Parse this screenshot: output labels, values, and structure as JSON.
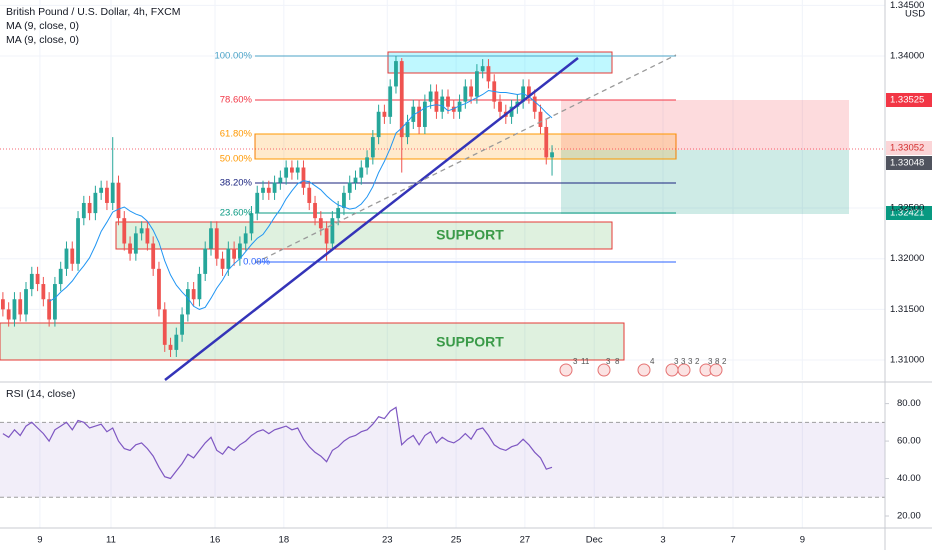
{
  "chart_data": [
    {
      "type": "candlestick",
      "title": "British Pound / U.S. Dollar, 4h, FXCM",
      "indicators": [
        "MA (9, close, 0)",
        "MA (9, close, 0)"
      ],
      "currency": "USD",
      "up_color": "#26a69a",
      "down_color": "#ef5350",
      "candles": [
        [
          1.316,
          1.3167,
          1.3143,
          1.315
        ],
        [
          1.315,
          1.3157,
          1.3133,
          1.314
        ],
        [
          1.314,
          1.3167,
          1.3133,
          1.316
        ],
        [
          1.316,
          1.3167,
          1.3138,
          1.3145
        ],
        [
          1.3145,
          1.3177,
          1.3138,
          1.317
        ],
        [
          1.317,
          1.3192,
          1.3163,
          1.3185
        ],
        [
          1.3185,
          1.3192,
          1.3168,
          1.3175
        ],
        [
          1.3175,
          1.3182,
          1.3153,
          1.316
        ],
        [
          1.316,
          1.3167,
          1.3133,
          1.314
        ],
        [
          1.314,
          1.3182,
          1.3133,
          1.3175
        ],
        [
          1.3175,
          1.3197,
          1.3168,
          1.319
        ],
        [
          1.319,
          1.3217,
          1.3183,
          1.321
        ],
        [
          1.321,
          1.3217,
          1.3188,
          1.3195
        ],
        [
          1.3195,
          1.3247,
          1.3188,
          1.324
        ],
        [
          1.324,
          1.3262,
          1.3233,
          1.3255
        ],
        [
          1.3255,
          1.3262,
          1.3238,
          1.3245
        ],
        [
          1.3245,
          1.3272,
          1.3238,
          1.3265
        ],
        [
          1.3265,
          1.3277,
          1.3258,
          1.327
        ],
        [
          1.327,
          1.3277,
          1.3248,
          1.3255
        ],
        [
          1.3255,
          1.332,
          1.3248,
          1.3275
        ],
        [
          1.3275,
          1.3282,
          1.3233,
          1.324
        ],
        [
          1.324,
          1.3247,
          1.3208,
          1.3215
        ],
        [
          1.3215,
          1.3222,
          1.3198,
          1.3205
        ],
        [
          1.3205,
          1.3232,
          1.3198,
          1.3225
        ],
        [
          1.3225,
          1.3237,
          1.3218,
          1.323
        ],
        [
          1.323,
          1.3237,
          1.3208,
          1.3215
        ],
        [
          1.3215,
          1.3222,
          1.3183,
          1.319
        ],
        [
          1.319,
          1.3197,
          1.3143,
          1.315
        ],
        [
          1.315,
          1.3157,
          1.3108,
          1.3115
        ],
        [
          1.3115,
          1.3122,
          1.3103,
          1.311
        ],
        [
          1.311,
          1.3132,
          1.3103,
          1.3125
        ],
        [
          1.3125,
          1.3152,
          1.3118,
          1.3145
        ],
        [
          1.3145,
          1.3177,
          1.3138,
          1.317
        ],
        [
          1.317,
          1.3177,
          1.3153,
          1.316
        ],
        [
          1.316,
          1.3192,
          1.3153,
          1.3185
        ],
        [
          1.3185,
          1.3217,
          1.3178,
          1.321
        ],
        [
          1.321,
          1.3237,
          1.3203,
          1.323
        ],
        [
          1.323,
          1.3237,
          1.3193,
          1.32
        ],
        [
          1.32,
          1.3207,
          1.3183,
          1.319
        ],
        [
          1.319,
          1.3217,
          1.3183,
          1.321
        ],
        [
          1.321,
          1.3217,
          1.3193,
          1.32
        ],
        [
          1.32,
          1.3222,
          1.3193,
          1.3215
        ],
        [
          1.3215,
          1.3232,
          1.3208,
          1.3225
        ],
        [
          1.3225,
          1.3252,
          1.3218,
          1.3245
        ],
        [
          1.3245,
          1.3272,
          1.3238,
          1.3265
        ],
        [
          1.3265,
          1.3277,
          1.3258,
          1.327
        ],
        [
          1.327,
          1.3277,
          1.3258,
          1.3265
        ],
        [
          1.3265,
          1.3282,
          1.3258,
          1.3275
        ],
        [
          1.3275,
          1.3287,
          1.3268,
          1.328
        ],
        [
          1.328,
          1.3297,
          1.3273,
          1.329
        ],
        [
          1.329,
          1.3297,
          1.3278,
          1.3285
        ],
        [
          1.3285,
          1.3297,
          1.3278,
          1.329
        ],
        [
          1.329,
          1.3297,
          1.3263,
          1.327
        ],
        [
          1.327,
          1.3277,
          1.3248,
          1.3255
        ],
        [
          1.3255,
          1.3262,
          1.3233,
          1.324
        ],
        [
          1.324,
          1.3247,
          1.3223,
          1.323
        ],
        [
          1.323,
          1.3237,
          1.3198,
          1.3215
        ],
        [
          1.3215,
          1.3247,
          1.3208,
          1.324
        ],
        [
          1.324,
          1.3257,
          1.3233,
          1.325
        ],
        [
          1.325,
          1.3272,
          1.3243,
          1.3265
        ],
        [
          1.3265,
          1.3282,
          1.3258,
          1.3275
        ],
        [
          1.3275,
          1.3287,
          1.3268,
          1.328
        ],
        [
          1.328,
          1.3297,
          1.3273,
          1.329
        ],
        [
          1.329,
          1.3307,
          1.3283,
          1.33
        ],
        [
          1.33,
          1.3327,
          1.3293,
          1.332
        ],
        [
          1.332,
          1.3352,
          1.3313,
          1.3345
        ],
        [
          1.3345,
          1.3352,
          1.3333,
          1.334
        ],
        [
          1.334,
          1.3377,
          1.3333,
          1.337
        ],
        [
          1.337,
          1.34,
          1.3363,
          1.3395
        ],
        [
          1.3395,
          1.3398,
          1.3285,
          1.332
        ],
        [
          1.332,
          1.3342,
          1.3313,
          1.3335
        ],
        [
          1.3335,
          1.3357,
          1.3328,
          1.335
        ],
        [
          1.335,
          1.3357,
          1.3323,
          1.333
        ],
        [
          1.333,
          1.3362,
          1.3323,
          1.3355
        ],
        [
          1.3355,
          1.3372,
          1.3348,
          1.3365
        ],
        [
          1.3365,
          1.3372,
          1.3338,
          1.3345
        ],
        [
          1.3345,
          1.3367,
          1.3338,
          1.336
        ],
        [
          1.336,
          1.3367,
          1.3343,
          1.335
        ],
        [
          1.335,
          1.3357,
          1.3338,
          1.3345
        ],
        [
          1.3345,
          1.3362,
          1.3338,
          1.3355
        ],
        [
          1.3355,
          1.3377,
          1.3348,
          1.337
        ],
        [
          1.337,
          1.3377,
          1.3353,
          1.336
        ],
        [
          1.336,
          1.3392,
          1.3353,
          1.3385
        ],
        [
          1.3385,
          1.3397,
          1.3378,
          1.339
        ],
        [
          1.339,
          1.3397,
          1.3368,
          1.3375
        ],
        [
          1.3375,
          1.3382,
          1.3348,
          1.3355
        ],
        [
          1.3355,
          1.3362,
          1.3338,
          1.3345
        ],
        [
          1.3345,
          1.3352,
          1.3333,
          1.334
        ],
        [
          1.334,
          1.3357,
          1.3333,
          1.335
        ],
        [
          1.335,
          1.3362,
          1.3343,
          1.3355
        ],
        [
          1.3355,
          1.3377,
          1.3348,
          1.337
        ],
        [
          1.337,
          1.3377,
          1.3353,
          1.336
        ],
        [
          1.336,
          1.3367,
          1.3338,
          1.3345
        ],
        [
          1.3345,
          1.3352,
          1.3323,
          1.333
        ],
        [
          1.333,
          1.3337,
          1.3293,
          1.33
        ],
        [
          1.33,
          1.3312,
          1.3282,
          1.3305
        ]
      ],
      "ma": {
        "color": "#2196f3",
        "values": [
          null,
          null,
          null,
          null,
          null,
          null,
          null,
          null,
          1.3158,
          1.3161,
          1.3167,
          1.3172,
          1.3178,
          1.3186,
          1.3193,
          1.3201,
          1.3213,
          1.3227,
          1.3236,
          1.3246,
          1.3249,
          1.3251,
          1.3247,
          1.3244,
          1.3242,
          1.3237,
          1.3228,
          1.3216,
          1.3198,
          1.3184,
          1.3174,
          1.3167,
          1.3161,
          1.3153,
          1.315,
          1.3152,
          1.3161,
          1.3171,
          1.3179,
          1.3189,
          1.3195,
          1.32,
          1.3207,
          1.3214,
          1.322,
          1.3224,
          1.3232,
          1.3241,
          1.3249,
          1.3259,
          1.3267,
          1.3274,
          1.3277,
          1.3276,
          1.3272,
          1.3268,
          1.3262,
          1.3257,
          1.3253,
          1.3251,
          1.3249,
          1.325,
          1.3254,
          1.3261,
          1.3271,
          1.3285,
          1.3296,
          1.3309,
          1.3324,
          1.3329,
          1.3335,
          1.3342,
          1.3345,
          1.3349,
          1.3351,
          1.3352,
          1.3351,
          1.3346,
          1.3348,
          1.3351,
          1.3353,
          1.3356,
          1.3359,
          1.3362,
          1.3366,
          1.3365,
          1.3364,
          1.3364,
          1.3363,
          1.3362,
          1.3363,
          1.336,
          1.3355,
          1.335,
          1.3344,
          1.3339
        ]
      },
      "ylim": [
        1.30803,
        1.34553
      ],
      "yticks": [
        {
          "value": 1.345,
          "label": "1.34500"
        },
        {
          "value": 1.34,
          "label": "1.34000"
        },
        {
          "value": 1.325,
          "label": "1.32500"
        },
        {
          "value": 1.32,
          "label": "1.32000"
        },
        {
          "value": 1.315,
          "label": "1.31500"
        },
        {
          "value": 1.31,
          "label": "1.31000"
        }
      ],
      "xlim": [
        -0.5,
        152.6
      ],
      "xticks": [
        {
          "value": 6.4,
          "label": "9"
        },
        {
          "value": 18.7,
          "label": "11"
        },
        {
          "value": 36.7,
          "label": "16"
        },
        {
          "value": 48.6,
          "label": "18"
        },
        {
          "value": 66.5,
          "label": "23"
        },
        {
          "value": 78.4,
          "label": "25"
        },
        {
          "value": 90.3,
          "label": "27"
        },
        {
          "value": 102.3,
          "label": "Dec"
        },
        {
          "value": 114.2,
          "label": "3"
        },
        {
          "value": 126.3,
          "label": "7"
        },
        {
          "value": 138.3,
          "label": "9"
        }
      ],
      "grid": true,
      "fib_labels": [
        "100.00%",
        "78.60%",
        "61.80%",
        "50.00%",
        "38.20%",
        "23.60%",
        "0.00%"
      ],
      "zone_labels": [
        "SUPPORT",
        "SUPPORT"
      ],
      "price_labels": [
        "1.33525",
        "1.33052",
        "1.33048",
        "1.32421"
      ],
      "events": [
        "3",
        "11",
        "3",
        "8",
        "4",
        "3",
        "3",
        "3",
        "2",
        "3",
        "8",
        "2"
      ]
    },
    {
      "type": "line",
      "title": "RSI (14, close)",
      "color": "#7e57c2",
      "values": [
        64,
        62,
        66,
        63,
        68,
        70,
        67,
        64,
        60,
        66,
        68,
        70,
        66,
        71,
        70,
        67,
        68,
        69,
        65,
        67,
        60,
        56,
        55,
        58,
        59,
        56,
        52,
        46,
        41,
        40,
        44,
        48,
        53,
        51,
        55,
        59,
        62,
        55,
        53,
        57,
        55,
        58,
        60,
        63,
        65,
        66,
        64,
        66,
        67,
        68,
        66,
        67,
        61,
        57,
        54,
        52,
        49,
        55,
        57,
        60,
        62,
        63,
        65,
        66,
        69,
        73,
        72,
        76,
        78,
        58,
        61,
        63,
        58,
        63,
        65,
        59,
        62,
        60,
        59,
        61,
        64,
        61,
        66,
        67,
        63,
        58,
        56,
        55,
        57,
        58,
        61,
        58,
        54,
        51,
        45,
        46
      ],
      "ylim": [
        13.6,
        91
      ],
      "yticks": [
        {
          "value": 80,
          "label": "80.00"
        },
        {
          "value": 60,
          "label": "60.00"
        },
        {
          "value": 40,
          "label": "40.00"
        },
        {
          "value": 20,
          "label": "20.00"
        }
      ],
      "band": [
        30,
        70
      ]
    }
  ]
}
